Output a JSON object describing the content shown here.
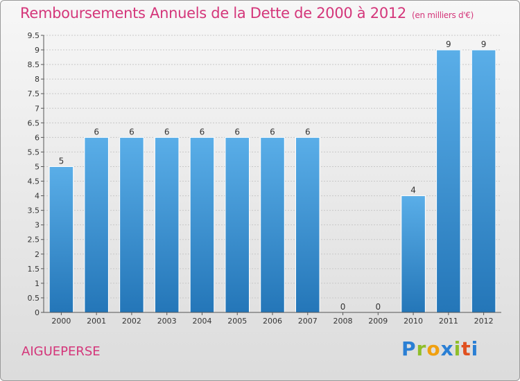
{
  "header": {
    "title": "Remboursements Annuels de la Dette de 2000 à 2012",
    "unit": "(en milliers d'€)"
  },
  "footer": {
    "commune": "AIGUEPERSE",
    "logo": "Proxiti"
  },
  "colors": {
    "bar_top": "#5aaee8",
    "bar_bottom": "#2476b8",
    "title": "#d4367a"
  },
  "chart_data": {
    "type": "bar",
    "title": "Remboursements Annuels de la Dette de 2000 à 2012",
    "xlabel": "",
    "ylabel": "",
    "categories": [
      "2000",
      "2001",
      "2002",
      "2003",
      "2004",
      "2005",
      "2006",
      "2007",
      "2008",
      "2009",
      "2010",
      "2011",
      "2012"
    ],
    "values": [
      5,
      6,
      6,
      6,
      6,
      6,
      6,
      6,
      0,
      0,
      4,
      9,
      9
    ],
    "data_labels": [
      "5",
      "6",
      "6",
      "6",
      "6",
      "6",
      "6",
      "6",
      "0",
      "0",
      "4",
      "9",
      "9"
    ],
    "ylim": [
      0,
      9.5
    ],
    "yticks": [
      "0",
      "0.5",
      "1",
      "1.5",
      "2",
      "2.5",
      "3",
      "3.5",
      "4",
      "4.5",
      "5",
      "5.5",
      "6",
      "6.5",
      "7",
      "7.5",
      "8",
      "8.5",
      "9",
      "9.5"
    ],
    "grid": true
  }
}
